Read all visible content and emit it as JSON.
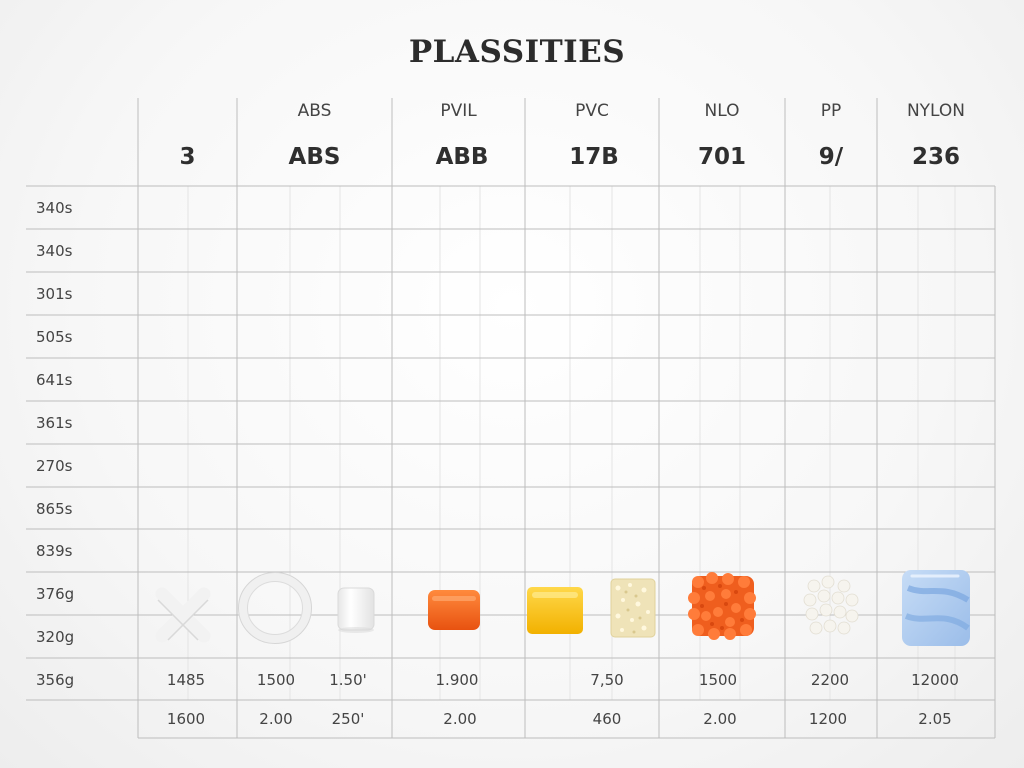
{
  "title": "PLASSITIES",
  "columns": [
    {
      "name": "",
      "code": "3"
    },
    {
      "name": "ABS",
      "code": "ABS"
    },
    {
      "name": "PVIL",
      "code": "ABB"
    },
    {
      "name": "PVC",
      "code": "17B"
    },
    {
      "name": "NLO",
      "code": "701"
    },
    {
      "name": "PP",
      "code": "9/"
    },
    {
      "name": "NYLON",
      "code": "236"
    }
  ],
  "row_labels": [
    "340s",
    "340s",
    "301s",
    "505s",
    "641s",
    "361s",
    "270s",
    "865s",
    "839s",
    "376g",
    "320g",
    "356g"
  ],
  "bottom_rows": [
    [
      "1485",
      "1500",
      "1.50'",
      "1.900",
      "7,50",
      "1500",
      "2200",
      "12000"
    ],
    [
      "1600",
      "2.00",
      "250'",
      "2.00",
      "460",
      "2.00",
      "1200",
      "2.05"
    ]
  ],
  "samples": [
    {
      "name": "x-shaped-white-sample-icon",
      "color": "#ffffff"
    },
    {
      "name": "white-ring-sample-icon",
      "color": "#ffffff"
    },
    {
      "name": "white-cylinder-sample-icon",
      "color": "#ffffff"
    },
    {
      "name": "orange-block-sample-icon",
      "color": "#f26a1b"
    },
    {
      "name": "yellow-block-sample-icon",
      "color": "#f7c81a"
    },
    {
      "name": "cream-granular-sample-icon",
      "color": "#efe3b8"
    },
    {
      "name": "orange-fibrous-sample-icon",
      "color": "#ef5e1e"
    },
    {
      "name": "white-granular-sample-icon",
      "color": "#f4f2ec"
    },
    {
      "name": "blue-block-sample-icon",
      "color": "#a9c9ee"
    }
  ]
}
